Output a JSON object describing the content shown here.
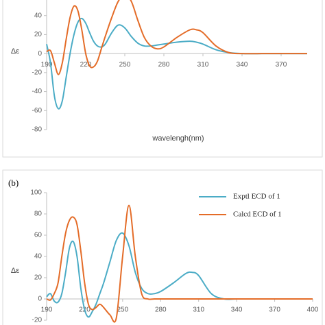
{
  "chart_data": [
    {
      "type": "line",
      "ylabel": "Δε",
      "xlabel": "wavelengh(nm)",
      "x": [
        190,
        193,
        196,
        199,
        202,
        205,
        208,
        211,
        214,
        217,
        220,
        223,
        226,
        229,
        232,
        235,
        240,
        245,
        250,
        255,
        260,
        265,
        270,
        275,
        280,
        290,
        300,
        305,
        310,
        320,
        330,
        340,
        360,
        390
      ],
      "series": [
        {
          "color": "#4bacc6",
          "values": [
            10,
            -10,
            -45,
            -58,
            -50,
            -25,
            0,
            20,
            33,
            37,
            32,
            22,
            13,
            8,
            7,
            10,
            22,
            30,
            27,
            18,
            11,
            8,
            8,
            9,
            10,
            12,
            13,
            12,
            10,
            4,
            1,
            0,
            0,
            0
          ]
        },
        {
          "color": "#e46c28",
          "values": [
            2,
            3,
            -10,
            -22,
            -10,
            15,
            38,
            50,
            45,
            25,
            0,
            -13,
            -14,
            -8,
            5,
            18,
            38,
            55,
            62,
            55,
            35,
            17,
            8,
            5,
            7,
            17,
            25,
            25,
            22,
            8,
            1,
            0,
            0,
            0
          ]
        }
      ],
      "xlim": [
        190,
        390
      ],
      "xticks": [
        190,
        220,
        250,
        280,
        310,
        340,
        370
      ],
      "ylim": [
        -80,
        60
      ],
      "yticks": [
        -80,
        -60,
        -40,
        -20,
        0,
        20,
        40,
        60
      ]
    },
    {
      "type": "line",
      "panel_label": "(b)",
      "ylabel": "Δε",
      "x": [
        190,
        193,
        196,
        199,
        202,
        205,
        208,
        211,
        214,
        217,
        220,
        223,
        226,
        229,
        232,
        235,
        240,
        245,
        250,
        255,
        260,
        265,
        270,
        275,
        280,
        290,
        300,
        305,
        310,
        320,
        330,
        340,
        360,
        400
      ],
      "series": [
        {
          "name": "Exptl ECD of 1",
          "color": "#4bacc6",
          "values": [
            2,
            5,
            -2,
            -3,
            5,
            25,
            48,
            54,
            40,
            10,
            -10,
            -17,
            -12,
            -5,
            5,
            15,
            35,
            55,
            62,
            50,
            25,
            10,
            5,
            5,
            7,
            15,
            24,
            25,
            22,
            5,
            0,
            0,
            0,
            0
          ]
        },
        {
          "name": "Calcd ECD of 1",
          "color": "#e46c28",
          "values": [
            0,
            -1,
            5,
            15,
            40,
            62,
            74,
            77,
            70,
            45,
            15,
            -5,
            -10,
            -8,
            -5,
            -8,
            -15,
            -18,
            40,
            88,
            40,
            5,
            0,
            0,
            0,
            0,
            0,
            0,
            0,
            0,
            0,
            0,
            0,
            0
          ]
        }
      ],
      "legend": "upper right",
      "xlim": [
        190,
        400
      ],
      "xticks": [
        190,
        220,
        250,
        280,
        310,
        340,
        370,
        400
      ],
      "ylim": [
        -20,
        100
      ],
      "yticks": [
        -20,
        0,
        20,
        40,
        60,
        80,
        100
      ]
    }
  ]
}
